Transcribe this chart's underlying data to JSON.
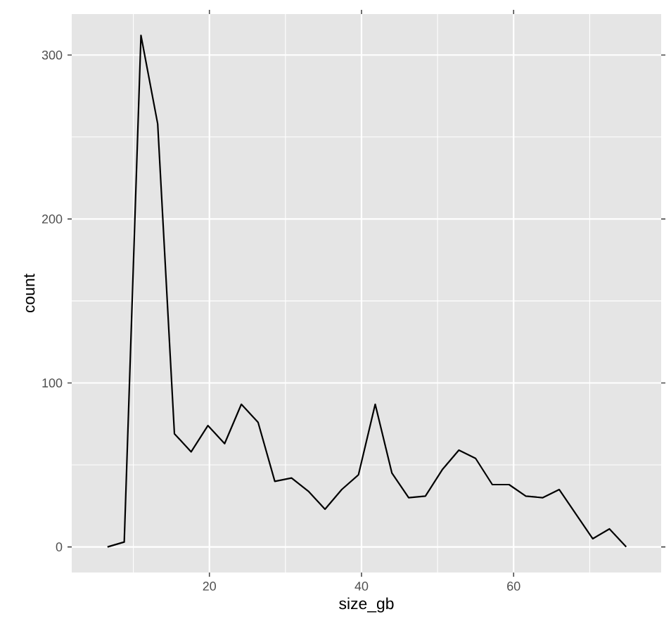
{
  "chart_data": {
    "type": "line",
    "xlabel": "size_gb",
    "ylabel": "count",
    "x": [
      6.6,
      8.8,
      11,
      13.2,
      15.4,
      17.6,
      19.8,
      22,
      24.2,
      26.4,
      28.6,
      30.8,
      33,
      35.2,
      37.4,
      39.6,
      41.8,
      44,
      46.2,
      48.4,
      50.6,
      52.8,
      55,
      57.2,
      59.4,
      61.6,
      63.8,
      66,
      68.2,
      70.4,
      72.6,
      74.8
    ],
    "values": [
      0,
      3,
      312,
      258,
      69,
      58,
      74,
      63,
      87,
      76,
      40,
      42,
      34,
      23,
      35,
      44,
      87,
      45,
      30,
      31,
      47,
      59,
      54,
      38,
      38,
      31,
      30,
      35,
      20,
      5,
      11,
      0
    ],
    "color": "#000000",
    "xlim": [
      1.9,
      79.4
    ],
    "ylim": [
      -15.6,
      325
    ],
    "xticks": [
      20,
      40,
      60
    ],
    "yticks": [
      0,
      100,
      200,
      300
    ],
    "grid": true,
    "marker": "none",
    "line_style": "solid"
  }
}
